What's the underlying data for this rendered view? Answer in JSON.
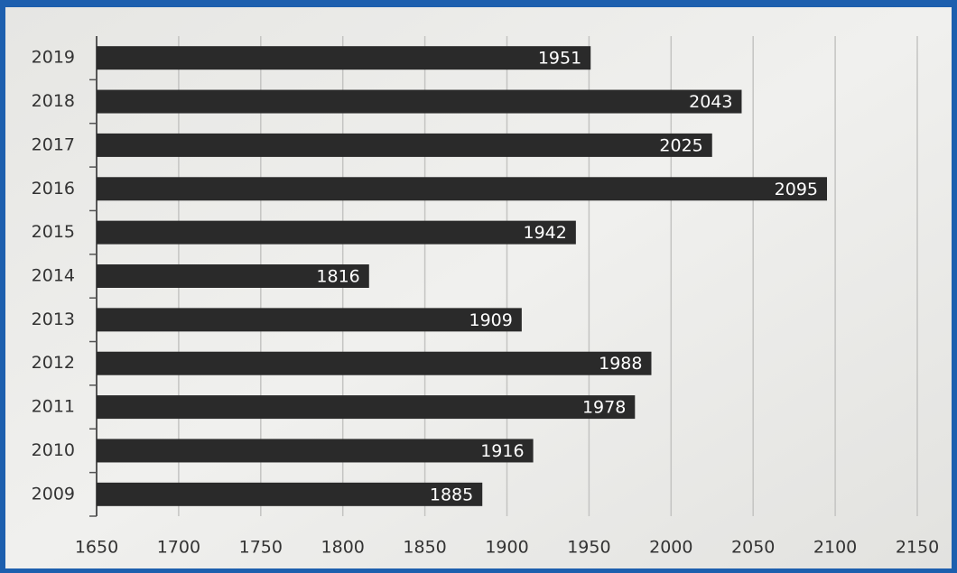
{
  "chart_data": {
    "type": "bar",
    "orientation": "horizontal",
    "categories": [
      "2019",
      "2018",
      "2017",
      "2016",
      "2015",
      "2014",
      "2013",
      "2012",
      "2011",
      "2010",
      "2009"
    ],
    "values": [
      1951,
      2043,
      2025,
      2095,
      1942,
      1816,
      1909,
      1988,
      1978,
      1916,
      1885
    ],
    "color": "#2a2a2a",
    "xlim": [
      1650,
      2150
    ],
    "xticks": [
      1650,
      1700,
      1750,
      1800,
      1850,
      1900,
      1950,
      2000,
      2050,
      2100,
      2150
    ],
    "grid": true
  }
}
